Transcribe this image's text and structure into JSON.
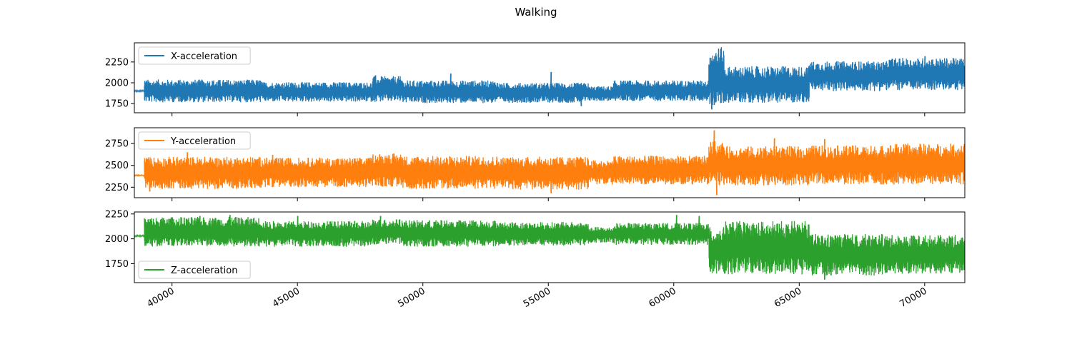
{
  "chart_data": {
    "type": "line",
    "title": "Walking",
    "x_ticks": [
      40000,
      45000,
      50000,
      55000,
      60000,
      65000,
      70000
    ],
    "xlim": [
      38500,
      71600
    ],
    "x_tick_labels_rotated": true,
    "grid": false,
    "panels": [
      {
        "series": [
          {
            "name": "X-acceleration",
            "color": "#1f77b4"
          }
        ],
        "y_ticks": [
          1750,
          2000,
          2250
        ],
        "ylim": [
          1640,
          2480
        ],
        "legend_position": "upper left",
        "segments": [
          {
            "x": [
              38500,
              38900
            ],
            "low": 1890,
            "high": 1915
          },
          {
            "x": [
              38900,
              43600
            ],
            "low": 1765,
            "high": 2040
          },
          {
            "x": [
              43600,
              48000
            ],
            "low": 1770,
            "high": 2010
          },
          {
            "x": [
              48000,
              49200
            ],
            "low": 1770,
            "high": 2080
          },
          {
            "x": [
              49200,
              53000
            ],
            "low": 1755,
            "high": 2030
          },
          {
            "x": [
              53000,
              56600
            ],
            "low": 1760,
            "high": 2000
          },
          {
            "x": [
              56600,
              57600
            ],
            "low": 1780,
            "high": 1960
          },
          {
            "x": [
              57600,
              61400
            ],
            "low": 1780,
            "high": 2030
          },
          {
            "x": [
              61400,
              62000
            ],
            "low": 1720,
            "high": 2430
          },
          {
            "x": [
              62000,
              65400
            ],
            "low": 1760,
            "high": 2200
          },
          {
            "x": [
              65400,
              68500
            ],
            "low": 1900,
            "high": 2260
          },
          {
            "x": [
              68500,
              71600
            ],
            "low": 1910,
            "high": 2300
          }
        ],
        "spikes": [
          [
            48100,
            2090
          ],
          [
            51100,
            2110
          ],
          [
            55100,
            2130
          ],
          [
            56300,
            1720
          ],
          [
            61500,
            1680
          ],
          [
            70000,
            2320
          ]
        ]
      },
      {
        "series": [
          {
            "name": "Y-acceleration",
            "color": "#ff7f0e"
          }
        ],
        "y_ticks": [
          2250,
          2500,
          2750
        ],
        "ylim": [
          2130,
          2930
        ],
        "legend_position": "upper left",
        "segments": [
          {
            "x": [
              38500,
              38900
            ],
            "low": 2375,
            "high": 2395
          },
          {
            "x": [
              38900,
              43600
            ],
            "low": 2230,
            "high": 2600
          },
          {
            "x": [
              43600,
              48000
            ],
            "low": 2250,
            "high": 2590
          },
          {
            "x": [
              48000,
              49200
            ],
            "low": 2250,
            "high": 2640
          },
          {
            "x": [
              49200,
              53000
            ],
            "low": 2230,
            "high": 2610
          },
          {
            "x": [
              53000,
              56600
            ],
            "low": 2220,
            "high": 2600
          },
          {
            "x": [
              56600,
              57600
            ],
            "low": 2280,
            "high": 2560
          },
          {
            "x": [
              57600,
              61400
            ],
            "low": 2280,
            "high": 2610
          },
          {
            "x": [
              61400,
              62000
            ],
            "low": 2260,
            "high": 2780
          },
          {
            "x": [
              62000,
              65400
            ],
            "low": 2270,
            "high": 2720
          },
          {
            "x": [
              65400,
              68500
            ],
            "low": 2280,
            "high": 2730
          },
          {
            "x": [
              68500,
              71600
            ],
            "low": 2280,
            "high": 2750
          }
        ],
        "spikes": [
          [
            39100,
            2200
          ],
          [
            40600,
            2650
          ],
          [
            44000,
            2620
          ],
          [
            55100,
            2180
          ],
          [
            61600,
            2900
          ],
          [
            61700,
            2160
          ],
          [
            64000,
            2810
          ],
          [
            66000,
            2800
          ]
        ]
      },
      {
        "series": [
          {
            "name": "Z-acceleration",
            "color": "#2ca02c"
          }
        ],
        "y_ticks": [
          1750,
          2000,
          2250
        ],
        "ylim": [
          1560,
          2270
        ],
        "legend_position": "lower left",
        "segments": [
          {
            "x": [
              38500,
              38900
            ],
            "low": 2020,
            "high": 2040
          },
          {
            "x": [
              38900,
              43600
            ],
            "low": 1920,
            "high": 2220
          },
          {
            "x": [
              43600,
              48000
            ],
            "low": 1920,
            "high": 2180
          },
          {
            "x": [
              48000,
              49200
            ],
            "low": 1940,
            "high": 2200
          },
          {
            "x": [
              49200,
              53000
            ],
            "low": 1920,
            "high": 2190
          },
          {
            "x": [
              53000,
              56600
            ],
            "low": 1930,
            "high": 2170
          },
          {
            "x": [
              56600,
              57600
            ],
            "low": 1960,
            "high": 2120
          },
          {
            "x": [
              57600,
              61400
            ],
            "low": 1940,
            "high": 2160
          },
          {
            "x": [
              61400,
              62000
            ],
            "low": 1650,
            "high": 2120
          },
          {
            "x": [
              62000,
              65400
            ],
            "low": 1640,
            "high": 2180
          },
          {
            "x": [
              65400,
              68500
            ],
            "low": 1630,
            "high": 2050
          },
          {
            "x": [
              68500,
              71600
            ],
            "low": 1650,
            "high": 2040
          }
        ],
        "spikes": [
          [
            41100,
            2230
          ],
          [
            42300,
            2240
          ],
          [
            45000,
            2230
          ],
          [
            48300,
            2230
          ],
          [
            60100,
            2240
          ],
          [
            61000,
            2230
          ],
          [
            66000,
            1590
          ]
        ]
      }
    ]
  }
}
